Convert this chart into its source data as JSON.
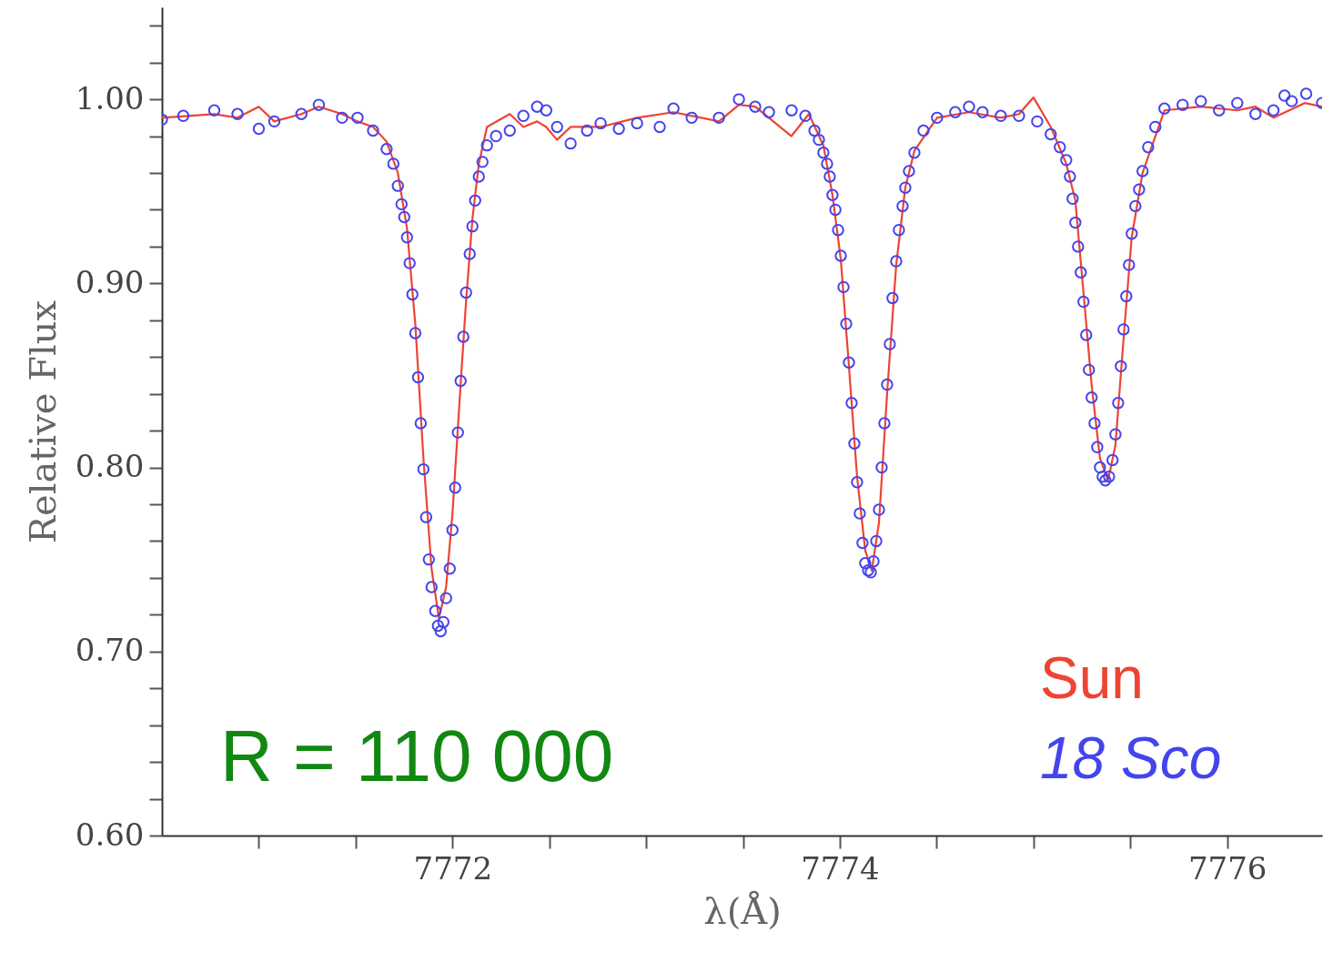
{
  "chart_data": {
    "type": "line",
    "xlabel": "λ(Å)",
    "ylabel": "Relative Flux",
    "xlim": [
      7770.5,
      7776.49
    ],
    "ylim": [
      0.6,
      1.05
    ],
    "xticks": [
      {
        "value": 7771,
        "label": null
      },
      {
        "value": 7771.5,
        "label": null
      },
      7772,
      {
        "value": 7772.5,
        "label": null
      },
      {
        "value": 7773,
        "label": null
      },
      {
        "value": 7773.5,
        "label": null
      },
      7774,
      {
        "value": 7774.5,
        "label": null
      },
      {
        "value": 7775,
        "label": null
      },
      {
        "value": 7775.5,
        "label": null
      },
      7776
    ],
    "yticks": [
      {
        "value": 0.6,
        "label": "0.60"
      },
      {
        "value": 0.62,
        "label": null
      },
      {
        "value": 0.64,
        "label": null
      },
      {
        "value": 0.66,
        "label": null
      },
      {
        "value": 0.68,
        "label": null
      },
      {
        "value": 0.7,
        "label": "0.70"
      },
      {
        "value": 0.72,
        "label": null
      },
      {
        "value": 0.74,
        "label": null
      },
      {
        "value": 0.76,
        "label": null
      },
      {
        "value": 0.78,
        "label": null
      },
      {
        "value": 0.8,
        "label": "0.80"
      },
      {
        "value": 0.82,
        "label": null
      },
      {
        "value": 0.84,
        "label": null
      },
      {
        "value": 0.86,
        "label": null
      },
      {
        "value": 0.88,
        "label": null
      },
      {
        "value": 0.9,
        "label": "0.90"
      },
      {
        "value": 0.92,
        "label": null
      },
      {
        "value": 0.94,
        "label": null
      },
      {
        "value": 0.96,
        "label": null
      },
      {
        "value": 0.98,
        "label": null
      },
      {
        "value": 1.0,
        "label": "1.00"
      },
      {
        "value": 1.02,
        "label": null
      },
      {
        "value": 1.04,
        "label": null
      }
    ],
    "grid": false,
    "legend": "bottom right",
    "annotations": [
      "R = 110 000"
    ],
    "series": [
      {
        "name": "Sun",
        "type": "line",
        "color": "#ee4433",
        "line_style": "solid",
        "x": [
          7770.5,
          7770.77,
          7770.89,
          7771.0,
          7771.08,
          7771.22,
          7771.31,
          7771.43,
          7771.51,
          7771.59,
          7771.66,
          7771.718,
          7771.765,
          7771.808,
          7771.85,
          7771.892,
          7771.93,
          7771.967,
          7772.0,
          7772.042,
          7772.07,
          7772.103,
          7772.136,
          7772.178,
          7772.296,
          7772.366,
          7772.437,
          7772.484,
          7772.54,
          7772.61,
          7772.765,
          7772.953,
          7773.141,
          7773.376,
          7773.479,
          7773.563,
          7773.75,
          7773.84,
          7773.915,
          7773.962,
          7774.005,
          7774.047,
          7774.089,
          7774.131,
          7774.165,
          7774.202,
          7774.244,
          7774.291,
          7774.338,
          7774.385,
          7774.502,
          7774.667,
          7774.831,
          7774.925,
          7775.0,
          7775.089,
          7775.169,
          7775.216,
          7775.258,
          7775.3,
          7775.343,
          7775.385,
          7775.423,
          7775.465,
          7775.507,
          7775.563,
          7775.676,
          7775.864,
          7776.052,
          7776.146,
          7776.24,
          7776.4,
          7776.49
        ],
        "values": [
          0.99,
          0.992,
          0.99,
          0.996,
          0.988,
          0.992,
          0.996,
          0.992,
          0.988,
          0.985,
          0.977,
          0.96,
          0.93,
          0.878,
          0.805,
          0.745,
          0.718,
          0.735,
          0.775,
          0.845,
          0.89,
          0.935,
          0.965,
          0.985,
          0.992,
          0.985,
          0.988,
          0.985,
          0.978,
          0.985,
          0.985,
          0.99,
          0.993,
          0.988,
          0.997,
          0.996,
          0.98,
          0.992,
          0.975,
          0.948,
          0.913,
          0.855,
          0.795,
          0.755,
          0.744,
          0.77,
          0.84,
          0.91,
          0.952,
          0.972,
          0.99,
          0.993,
          0.99,
          0.992,
          1.001,
          0.985,
          0.965,
          0.945,
          0.895,
          0.845,
          0.805,
          0.793,
          0.812,
          0.87,
          0.925,
          0.96,
          0.994,
          0.996,
          0.994,
          0.996,
          0.99,
          0.998,
          0.996
        ]
      },
      {
        "name": "18 Sco",
        "type": "scatter",
        "color": "#4444ee",
        "marker": "circle",
        "x": [
          7770.5,
          7770.61,
          7770.77,
          7770.89,
          7771.0,
          7771.08,
          7771.22,
          7771.31,
          7771.43,
          7771.51,
          7771.59,
          7771.66,
          7771.695,
          7771.718,
          7771.737,
          7771.751,
          7771.765,
          7771.779,
          7771.793,
          7771.808,
          7771.822,
          7771.836,
          7771.85,
          7771.864,
          7771.878,
          7771.892,
          7771.911,
          7771.925,
          7771.939,
          7771.953,
          7771.967,
          7771.986,
          7772.0,
          7772.014,
          7772.028,
          7772.042,
          7772.056,
          7772.07,
          7772.089,
          7772.103,
          7772.117,
          7772.136,
          7772.155,
          7772.178,
          7772.225,
          7772.296,
          7772.366,
          7772.437,
          7772.484,
          7772.54,
          7772.61,
          7772.695,
          7772.765,
          7772.859,
          7772.953,
          7773.07,
          7773.141,
          7773.235,
          7773.376,
          7773.479,
          7773.563,
          7773.634,
          7773.751,
          7773.822,
          7773.869,
          7773.892,
          7773.915,
          7773.934,
          7773.948,
          7773.962,
          7773.977,
          7773.991,
          7774.005,
          7774.019,
          7774.033,
          7774.047,
          7774.061,
          7774.075,
          7774.089,
          7774.103,
          7774.117,
          7774.131,
          7774.146,
          7774.16,
          7774.174,
          7774.188,
          7774.202,
          7774.216,
          7774.23,
          7774.244,
          7774.258,
          7774.272,
          7774.291,
          7774.305,
          7774.324,
          7774.338,
          7774.357,
          7774.385,
          7774.432,
          7774.502,
          7774.596,
          7774.667,
          7774.737,
          7774.831,
          7774.925,
          7775.019,
          7775.089,
          7775.136,
          7775.169,
          7775.188,
          7775.202,
          7775.216,
          7775.23,
          7775.244,
          7775.258,
          7775.272,
          7775.286,
          7775.3,
          7775.315,
          7775.329,
          7775.343,
          7775.357,
          7775.371,
          7775.39,
          7775.408,
          7775.423,
          7775.437,
          7775.451,
          7775.465,
          7775.479,
          7775.493,
          7775.507,
          7775.526,
          7775.545,
          7775.563,
          7775.592,
          7775.629,
          7775.676,
          7775.77,
          7775.864,
          7775.958,
          7776.052,
          7776.146,
          7776.239,
          7776.296,
          7776.333,
          7776.408,
          7776.49
        ],
        "values": [
          0.989,
          0.991,
          0.994,
          0.992,
          0.984,
          0.988,
          0.992,
          0.997,
          0.99,
          0.99,
          0.983,
          0.973,
          0.965,
          0.953,
          0.943,
          0.936,
          0.925,
          0.911,
          0.894,
          0.873,
          0.849,
          0.824,
          0.799,
          0.773,
          0.75,
          0.735,
          0.722,
          0.714,
          0.711,
          0.716,
          0.729,
          0.745,
          0.766,
          0.789,
          0.819,
          0.847,
          0.871,
          0.895,
          0.916,
          0.931,
          0.945,
          0.958,
          0.966,
          0.975,
          0.98,
          0.983,
          0.991,
          0.996,
          0.994,
          0.985,
          0.976,
          0.983,
          0.987,
          0.984,
          0.987,
          0.985,
          0.995,
          0.99,
          0.99,
          1.0,
          0.996,
          0.993,
          0.994,
          0.991,
          0.983,
          0.978,
          0.971,
          0.965,
          0.958,
          0.948,
          0.94,
          0.929,
          0.915,
          0.898,
          0.878,
          0.857,
          0.835,
          0.813,
          0.792,
          0.775,
          0.759,
          0.748,
          0.744,
          0.743,
          0.749,
          0.76,
          0.777,
          0.8,
          0.824,
          0.845,
          0.867,
          0.892,
          0.912,
          0.929,
          0.942,
          0.952,
          0.961,
          0.971,
          0.983,
          0.99,
          0.993,
          0.996,
          0.993,
          0.991,
          0.991,
          0.988,
          0.981,
          0.974,
          0.967,
          0.958,
          0.946,
          0.933,
          0.92,
          0.906,
          0.89,
          0.872,
          0.853,
          0.838,
          0.824,
          0.811,
          0.8,
          0.795,
          0.793,
          0.795,
          0.804,
          0.818,
          0.835,
          0.855,
          0.875,
          0.893,
          0.91,
          0.927,
          0.942,
          0.951,
          0.961,
          0.974,
          0.985,
          0.995,
          0.997,
          0.999,
          0.994,
          0.998,
          0.992,
          0.994,
          1.002,
          0.999,
          1.003,
          0.998
        ]
      }
    ]
  }
}
